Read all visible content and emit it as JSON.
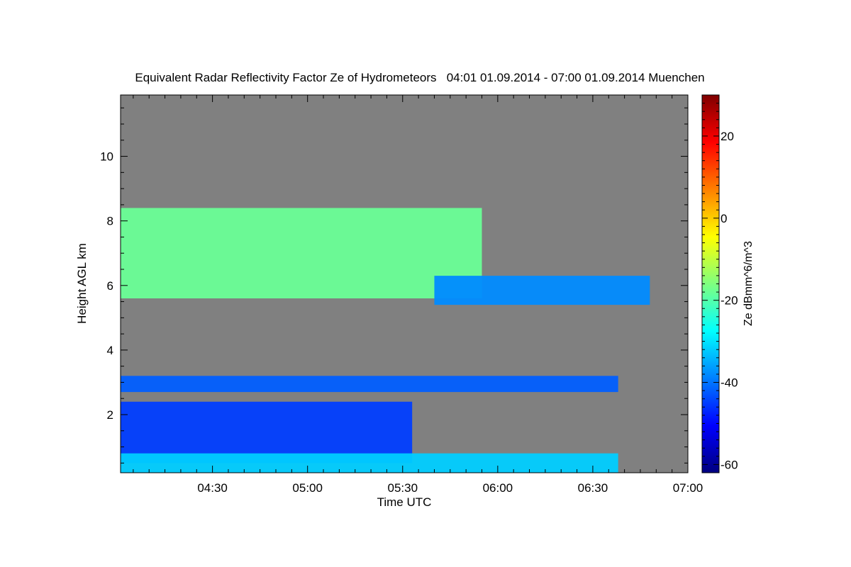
{
  "chart_data": {
    "type": "heatmap",
    "title": "Equivalent Radar Reflectivity Factor Ze of Hydrometeors   04:01 01.09.2014 - 07:00 01.09.2014 Muenchen",
    "xlabel": "Time UTC",
    "ylabel": "Height AGL km",
    "colorbar_label": "Ze dBmm^6/m^3",
    "x_range": [
      "04:01",
      "07:00"
    ],
    "x_ticks": [
      "04:30",
      "05:00",
      "05:30",
      "06:00",
      "06:30",
      "07:00"
    ],
    "ylim": [
      0.2,
      11.9
    ],
    "y_ticks": [
      "2",
      "4",
      "6",
      "8",
      "10"
    ],
    "colorbar_range": [
      -62,
      30
    ],
    "colorbar_ticks": [
      "-60",
      "-40",
      "-20",
      "0",
      "20"
    ],
    "background_color": "#808080",
    "layers": [
      {
        "x_start": "04:01",
        "x_end": "05:55",
        "y_bottom": 5.6,
        "y_top": 8.4,
        "ze_typical": -18
      },
      {
        "x_start": "05:40",
        "x_end": "06:48",
        "y_bottom": 5.4,
        "y_top": 6.3,
        "ze_typical": -38
      },
      {
        "x_start": "04:01",
        "x_end": "06:38",
        "y_bottom": 2.7,
        "y_top": 3.2,
        "ze_typical": -42
      },
      {
        "x_start": "04:01",
        "x_end": "05:33",
        "y_bottom": 0.5,
        "y_top": 2.4,
        "ze_typical": -45
      },
      {
        "x_start": "04:01",
        "x_end": "06:38",
        "y_bottom": 0.2,
        "y_top": 0.8,
        "ze_typical": -32
      }
    ]
  }
}
